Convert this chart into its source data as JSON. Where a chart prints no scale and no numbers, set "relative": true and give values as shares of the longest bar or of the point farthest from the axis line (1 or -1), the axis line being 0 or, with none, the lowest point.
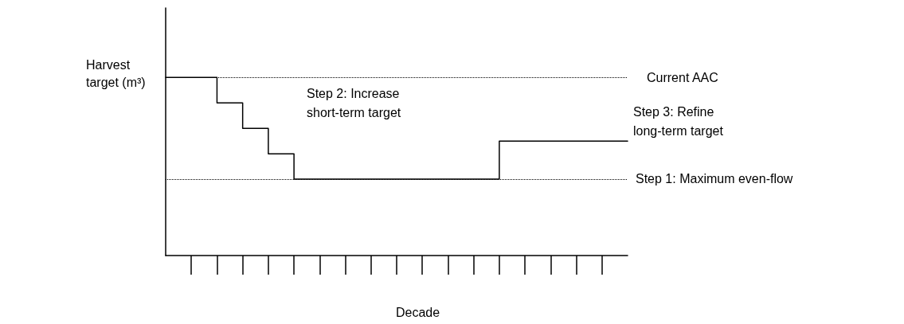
{
  "chart_data": {
    "type": "step",
    "relative": true,
    "xlabel": "Decade",
    "ylabel": "Harvest target (m³)",
    "categories": [
      null,
      null,
      null,
      null,
      null,
      null,
      null,
      null,
      null,
      null,
      null,
      null,
      null,
      null,
      null,
      null,
      null,
      null,
      null
    ],
    "series": [
      {
        "color": "#000000",
        "values": [
          1,
          1,
          0.857,
          0.714,
          0.571,
          0.429,
          0.429,
          0.429,
          0.429,
          0.429,
          0.429,
          0.429,
          0.429,
          0.643,
          0.643,
          0.643,
          0.643,
          0.643,
          0.643
        ]
      }
    ],
    "ref_lines": [
      {
        "axis": "y",
        "value": 1,
        "label": "Current AAC",
        "line_style": "dotted",
        "color": "#000000"
      },
      {
        "axis": "y",
        "value": 0.429,
        "label": "Step 1: Maximum even-flow",
        "line_style": "dotted",
        "color": "#000000"
      }
    ],
    "annotations": [
      "Step 2: Increase short-term target",
      "Step 3: Refine long-term target"
    ],
    "marker": "none",
    "line_style": "solid"
  }
}
